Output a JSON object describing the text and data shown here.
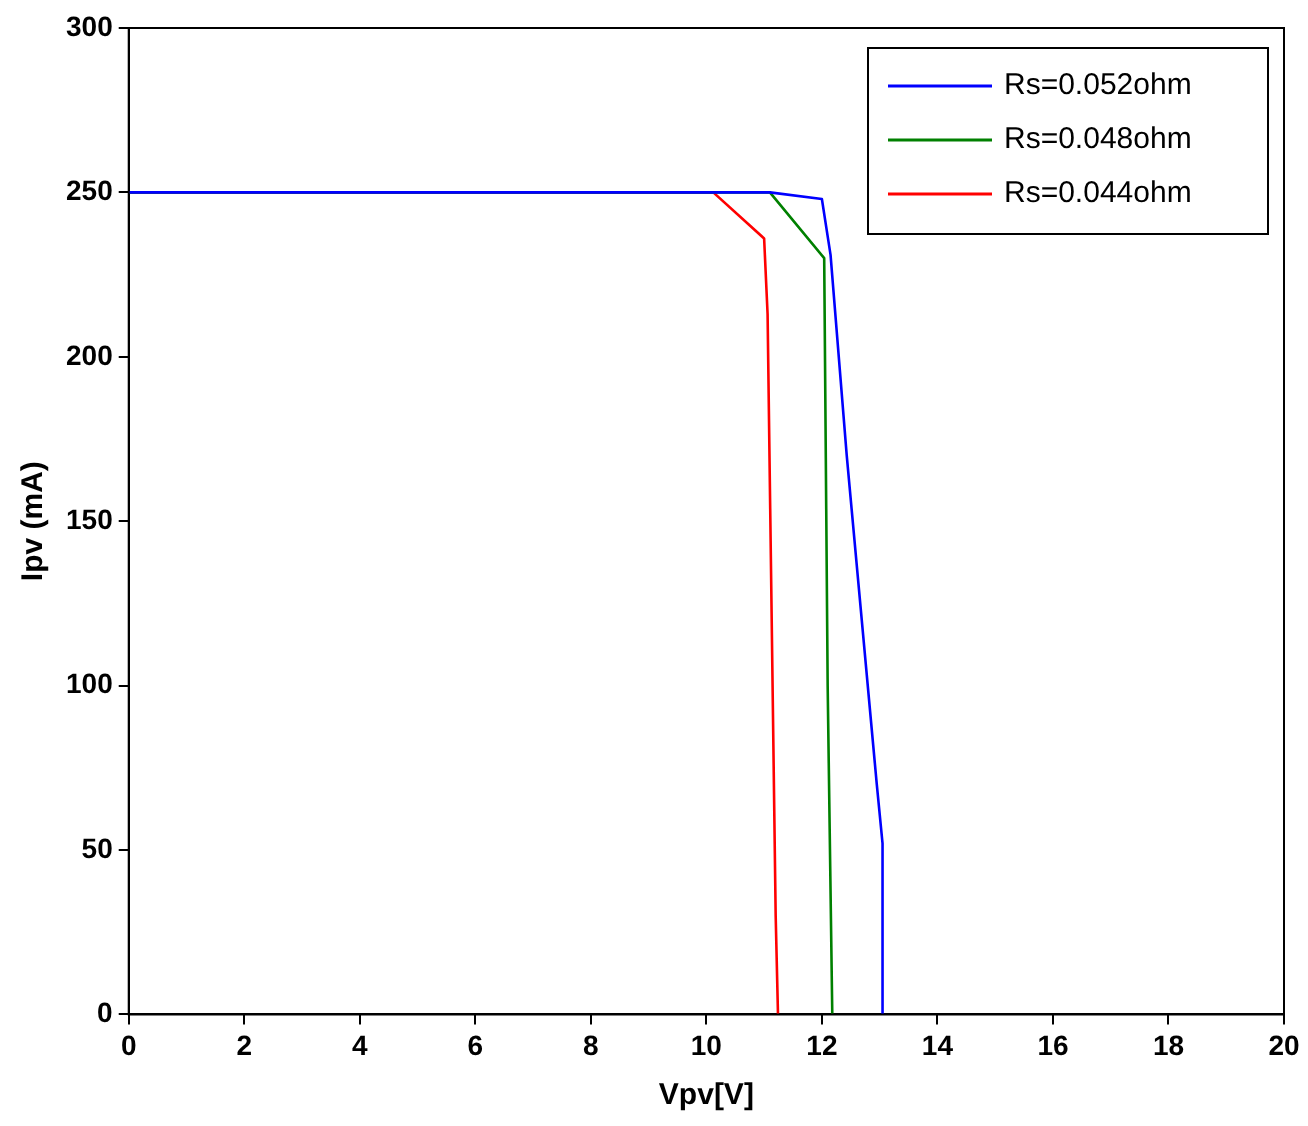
{
  "chart_data": {
    "type": "line",
    "xlabel": "Vpv[V]",
    "ylabel": "Ipv (mA)",
    "xlim": [
      0,
      20
    ],
    "xticks": [
      0,
      2,
      4,
      6,
      8,
      10,
      12,
      14,
      16,
      18,
      20
    ],
    "ylim": [
      0,
      300
    ],
    "yticks": [
      0,
      50,
      100,
      150,
      200,
      250,
      300
    ],
    "grid": false,
    "legend": "top right",
    "marker": "none",
    "line_style": "solid",
    "series": [
      {
        "name": "Rs=0.052ohm",
        "color": "#0000ff",
        "x": [
          0,
          11.1,
          12.0,
          12.15,
          12.43,
          12.95,
          13.05,
          13.05
        ],
        "values": [
          250,
          250,
          248,
          231,
          170,
          70,
          52,
          0
        ]
      },
      {
        "name": "Rs=0.048ohm",
        "color": "#008000",
        "x": [
          0,
          11.1,
          12.04,
          12.1,
          12.18
        ],
        "values": [
          250,
          250,
          230,
          100,
          0
        ]
      },
      {
        "name": "Rs=0.044ohm",
        "color": "#ff0000",
        "x": [
          0,
          10.12,
          11.0,
          11.06,
          11.2,
          11.24
        ],
        "values": [
          250,
          250,
          236,
          213,
          30,
          0
        ]
      }
    ]
  }
}
